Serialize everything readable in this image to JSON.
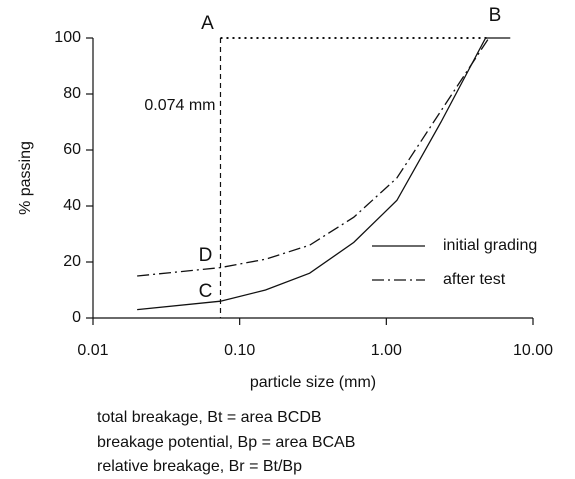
{
  "chart_data": {
    "type": "line",
    "x_label": "particle size (mm)",
    "y_label": "% passing",
    "xscale": "log",
    "xlim": [
      0.01,
      10
    ],
    "xticks": [
      0.01,
      {
        "value": 0.1,
        "label": "0.10"
      },
      {
        "value": 1,
        "label": "1.00"
      },
      {
        "value": 10,
        "label": "10.00"
      }
    ],
    "ylim": [
      0,
      100
    ],
    "yticks": [
      0,
      20,
      40,
      60,
      80,
      100
    ],
    "series": [
      {
        "name": "initial grading",
        "color": "#111111",
        "style": "solid",
        "x": [
          0.02,
          0.074,
          0.15,
          0.3,
          0.6,
          1.18,
          2.36,
          4.75,
          7
        ],
        "values": [
          3,
          6,
          10,
          16,
          27,
          42,
          70,
          100,
          100
        ]
      },
      {
        "name": "after test",
        "color": "#111111",
        "style": "dashdot",
        "x": [
          0.02,
          0.074,
          0.15,
          0.3,
          0.6,
          1.18,
          2.36,
          5
        ],
        "values": [
          15,
          18,
          21,
          26,
          36,
          50,
          74,
          100
        ]
      }
    ],
    "annotations": [
      "A",
      "B",
      "C",
      "D",
      "0.074 mm"
    ],
    "notes": [
      "total breakage, Bt = area BCDB",
      "breakage potential, Bp = area BCAB",
      "relative breakage, Br = Bt/Bp"
    ],
    "legend": "lower right"
  }
}
